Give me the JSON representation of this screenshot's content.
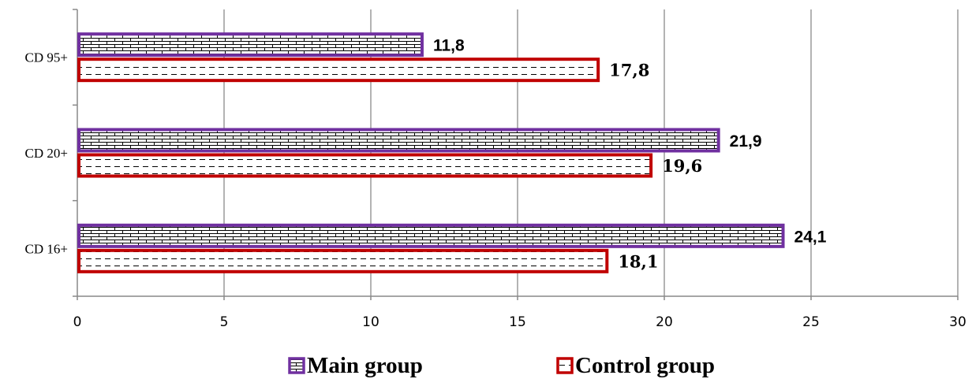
{
  "chart_data": {
    "type": "bar",
    "orientation": "horizontal",
    "categories": [
      "CD 95+",
      "CD 20+",
      "CD 16+"
    ],
    "series": [
      {
        "name": "Main group",
        "values": [
          11.8,
          21.9,
          24.1
        ],
        "labels": [
          "11,8",
          "21,9",
          "24,1"
        ],
        "color": "#7030a0",
        "pattern": "brick"
      },
      {
        "name": "Control group",
        "values": [
          17.8,
          19.6,
          18.1
        ],
        "labels": [
          "17,8",
          "19,6",
          "18,1"
        ],
        "color": "#c00000",
        "pattern": "dashed-horizontal"
      }
    ],
    "xlim": [
      0,
      30
    ],
    "xticks": [
      "0",
      "5",
      "10",
      "15",
      "20",
      "25",
      "30"
    ],
    "xlabel": "",
    "ylabel": "",
    "title": "",
    "grid": "vertical",
    "legend_position": "bottom"
  },
  "colors": {
    "grid": "#9a9a9a",
    "axis": "#888888"
  }
}
